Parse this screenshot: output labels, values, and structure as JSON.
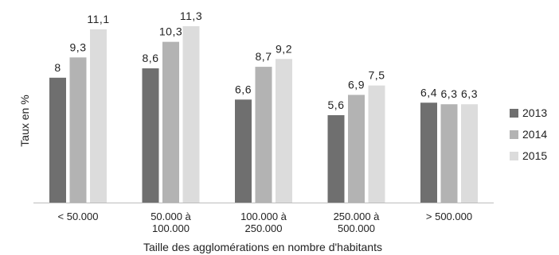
{
  "chart_data": {
    "type": "bar",
    "categories": [
      [
        "< 50.000"
      ],
      [
        "50.000 à",
        "100.000"
      ],
      [
        "100.000 à",
        "250.000"
      ],
      [
        "250.000 à",
        "500.000"
      ],
      [
        "> 500.000"
      ]
    ],
    "series": [
      {
        "name": "2013",
        "color": "#6f6f6f",
        "values": [
          8,
          8.6,
          6.6,
          5.6,
          6.4
        ],
        "labels": [
          "8",
          "8,6",
          "6,6",
          "5,6",
          "6,4"
        ]
      },
      {
        "name": "2014",
        "color": "#b3b3b3",
        "values": [
          9.3,
          10.3,
          8.7,
          6.9,
          6.3
        ],
        "labels": [
          "9,3",
          "10,3",
          "8,7",
          "6,9",
          "6,3"
        ]
      },
      {
        "name": "2015",
        "color": "#dcdcdc",
        "values": [
          11.1,
          11.3,
          9.2,
          7.5,
          6.3
        ],
        "labels": [
          "11,1",
          "11,3",
          "9,2",
          "7,5",
          "6,3"
        ]
      }
    ],
    "xlabel": "Taille des agglomérations en nombre d'habitants",
    "ylabel": "Taux en %",
    "ylim": [
      0,
      11.3
    ],
    "grid": false,
    "legend_position": "right"
  }
}
